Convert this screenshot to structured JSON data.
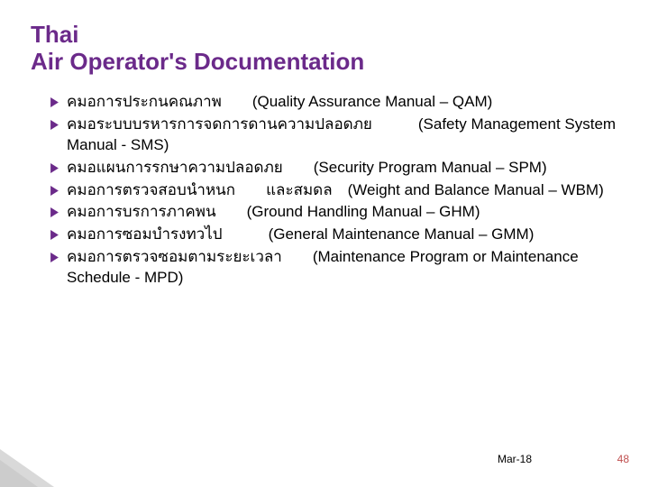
{
  "title": {
    "line1": "Thai",
    "line2": "Air Operator's Documentation",
    "color": "#6b2a8a",
    "fontsize": 26,
    "font_weight": "bold"
  },
  "bullet": {
    "glyph_color": "#6b2a8a",
    "glyph_size": 9
  },
  "body": {
    "fontsize": 17,
    "color": "#000000",
    "items": [
      "คมอการประกนคณภาพ  (Quality Assurance Manual – QAM)",
      "คมอระบบบรหารการจดการดานความปลอดภย   (Safety Management System Manual - SMS)",
      "คมอแผนการรกษาความปลอดภย  (Security Program Manual – SPM)",
      "คมอการตรวจสอบนำหนก  และสมดล (Weight and Balance Manual – WBM)",
      "คมอการบรการภาคพน  (Ground Handling Manual – GHM)",
      "คมอการซอมบำรงทวไป   (General Maintenance Manual – GMM)",
      "คมอการตรวจซอมตามระยะเวลา  (Maintenance Program or Maintenance Schedule - MPD)"
    ]
  },
  "footer": {
    "date": "Mar-18",
    "page": "48",
    "fontsize": 12,
    "date_color": "#000000",
    "page_color": "#c05050"
  },
  "background_color": "#ffffff"
}
